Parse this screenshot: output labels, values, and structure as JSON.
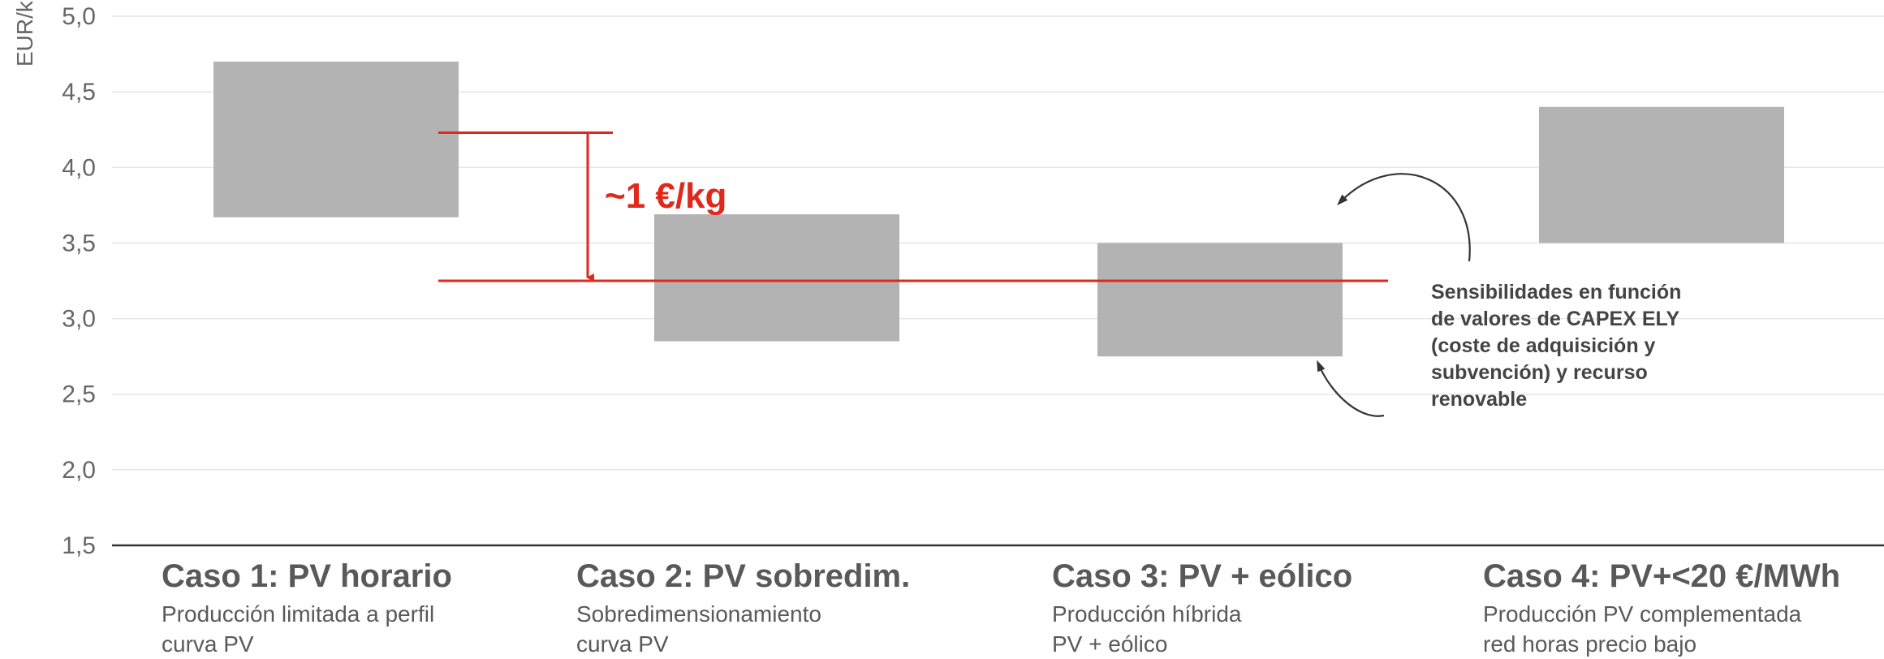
{
  "chart_data": {
    "type": "bar",
    "subtype": "floating-range",
    "ylabel": "EUR/kg",
    "ylim": [
      1.5,
      5.0
    ],
    "yticks": [
      "1,5",
      "2,0",
      "2,5",
      "3,0",
      "3,5",
      "4,0",
      "4,5",
      "5,0"
    ],
    "ytick_values": [
      1.5,
      2.0,
      2.5,
      3.0,
      3.5,
      4.0,
      4.5,
      5.0
    ],
    "grid": true,
    "categories": [
      {
        "title": "Caso 1: PV horario",
        "desc_line1": "Producción limitada a perfil",
        "desc_line2": "curva PV"
      },
      {
        "title": "Caso 2: PV sobredim.",
        "desc_line1": "Sobredimensionamiento",
        "desc_line2": "curva PV"
      },
      {
        "title": "Caso 3: PV + eólico",
        "desc_line1": "Producción híbrida",
        "desc_line2": "PV  + eólico"
      },
      {
        "title": "Caso 4: PV+<20 €/MWh",
        "desc_line1": "Producción PV complementada",
        "desc_line2": "red horas precio bajo"
      }
    ],
    "ranges": [
      {
        "low": 3.67,
        "high": 4.7
      },
      {
        "low": 2.85,
        "high": 3.69
      },
      {
        "low": 2.75,
        "high": 3.5
      },
      {
        "low": 3.5,
        "high": 4.4
      }
    ],
    "reference_lines": {
      "upper": 4.23,
      "lower": 3.25
    },
    "annotation_delta": "~1 €/kg",
    "annotation_note": [
      "Sensibilidades en función",
      "de valores de CAPEX ELY",
      "(coste de adquisición y",
      "subvención) y recurso",
      "renovable"
    ],
    "colors": {
      "bar": "#b3b3b3",
      "accent": "#e0281c",
      "text": "#595959",
      "grid": "#e6e6e6",
      "axis": "#333333"
    }
  }
}
